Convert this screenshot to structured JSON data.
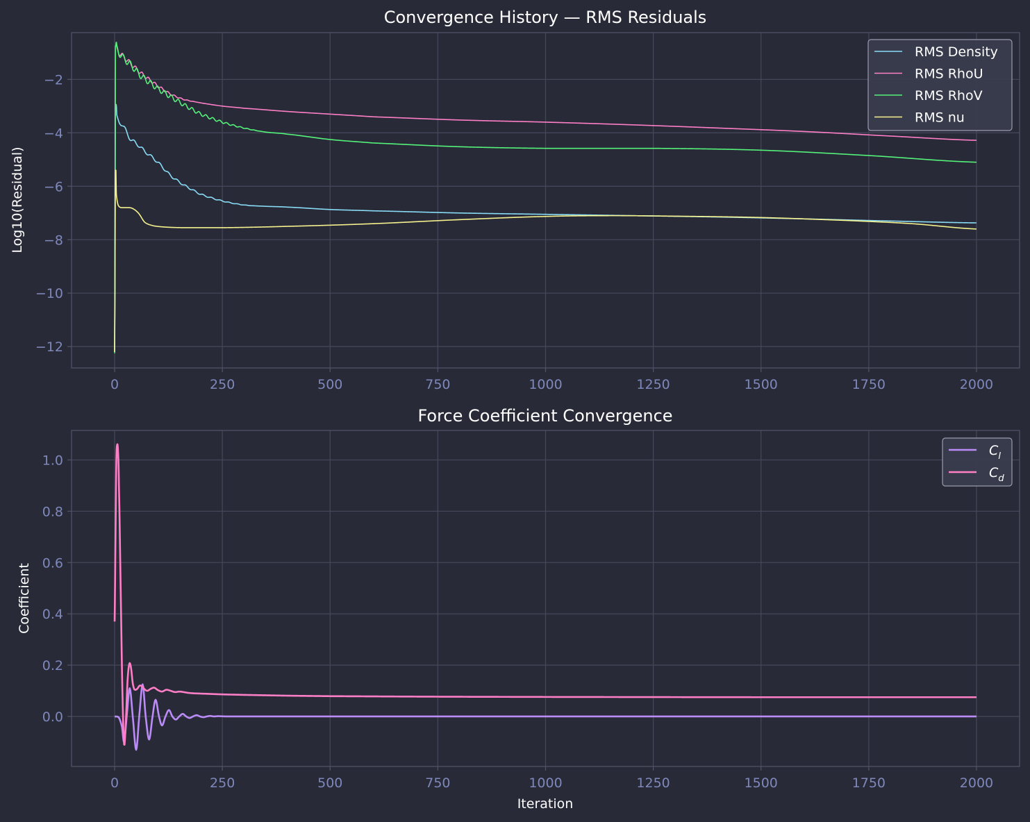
{
  "theme": {
    "background": "#282a37",
    "grid": "#444659",
    "spine": "#4f5266",
    "tick_label": "#7f88bb",
    "text": "#ffffff",
    "legend_bg": "#3a3d4e",
    "legend_edge": "#9a9dae"
  },
  "chart_data": [
    {
      "type": "line",
      "title": "Convergence History — RMS Residuals",
      "xlabel": "",
      "ylabel": "Log10(Residual)",
      "xlim": [
        -100,
        2100
      ],
      "ylim": [
        -12.8,
        -0.25
      ],
      "xticks": [
        0,
        250,
        500,
        750,
        1000,
        1250,
        1500,
        1750,
        2000
      ],
      "xtick_labels": [
        "0",
        "250",
        "500",
        "750",
        "1000",
        "1250",
        "1500",
        "1750",
        "2000"
      ],
      "yticks": [
        -2,
        -4,
        -6,
        -8,
        -10,
        -12
      ],
      "ytick_labels": [
        "−2",
        "−4",
        "−6",
        "−8",
        "−10",
        "−12"
      ],
      "grid": true,
      "legend_position": "top-right",
      "series": [
        {
          "name": "RMS Density",
          "color": "#89dcf6",
          "x": [
            0,
            2,
            5,
            10,
            20,
            35,
            50,
            70,
            100,
            130,
            160,
            200,
            250,
            300,
            350,
            400,
            500,
            600,
            800,
            1000,
            1200,
            1400,
            1600,
            1800,
            2000
          ],
          "y": [
            -12.2,
            -3.0,
            -3.4,
            -3.6,
            -3.75,
            -4.2,
            -4.4,
            -4.7,
            -5.1,
            -5.6,
            -5.95,
            -6.3,
            -6.55,
            -6.7,
            -6.75,
            -6.78,
            -6.87,
            -6.92,
            -7.0,
            -7.05,
            -7.1,
            -7.15,
            -7.22,
            -7.3,
            -7.37
          ],
          "wiggle": {
            "amp": 0.07,
            "period": 20,
            "end": 330
          }
        },
        {
          "name": "RMS RhoU",
          "color": "#ff7fc7",
          "x": [
            0,
            2,
            5,
            10,
            20,
            40,
            60,
            80,
            100,
            130,
            160,
            200,
            250,
            300,
            400,
            500,
            600,
            800,
            1000,
            1200,
            1400,
            1600,
            1800,
            2000
          ],
          "y": [
            -12.2,
            -0.75,
            -0.85,
            -1.0,
            -1.15,
            -1.45,
            -1.75,
            -2.0,
            -2.25,
            -2.55,
            -2.75,
            -2.88,
            -3.0,
            -3.08,
            -3.2,
            -3.3,
            -3.4,
            -3.52,
            -3.6,
            -3.7,
            -3.82,
            -3.95,
            -4.12,
            -4.28
          ],
          "wiggle": {
            "amp": 0.1,
            "period": 15,
            "end": 190
          }
        },
        {
          "name": "RMS RhoV",
          "color": "#54f37a",
          "x": [
            0,
            2,
            5,
            10,
            20,
            40,
            60,
            80,
            100,
            130,
            160,
            200,
            250,
            300,
            350,
            400,
            500,
            600,
            800,
            1000,
            1250,
            1500,
            1750,
            2000
          ],
          "y": [
            -12.25,
            -0.75,
            -0.85,
            -1.0,
            -1.2,
            -1.5,
            -1.85,
            -2.1,
            -2.35,
            -2.65,
            -2.95,
            -3.3,
            -3.6,
            -3.82,
            -3.97,
            -4.05,
            -4.25,
            -4.38,
            -4.52,
            -4.58,
            -4.58,
            -4.65,
            -4.85,
            -5.1
          ],
          "wiggle": {
            "amp": 0.14,
            "period": 16,
            "end": 340
          }
        },
        {
          "name": "RMS nu",
          "color": "#f6f28e",
          "x": [
            0,
            2,
            4,
            8,
            15,
            25,
            40,
            55,
            70,
            90,
            120,
            160,
            250,
            400,
            600,
            800,
            1000,
            1150,
            1300,
            1500,
            1700,
            1850,
            2000
          ],
          "y": [
            -12.2,
            -5.4,
            -6.3,
            -6.7,
            -6.8,
            -6.8,
            -6.82,
            -7.0,
            -7.35,
            -7.48,
            -7.53,
            -7.55,
            -7.55,
            -7.5,
            -7.4,
            -7.25,
            -7.13,
            -7.1,
            -7.12,
            -7.17,
            -7.28,
            -7.4,
            -7.6
          ]
        }
      ]
    },
    {
      "type": "line",
      "title": "Force Coefficient Convergence",
      "xlabel": "Iteration",
      "ylabel": "Coefficient",
      "xlim": [
        -100,
        2100
      ],
      "ylim": [
        -0.195,
        1.115
      ],
      "xticks": [
        0,
        250,
        500,
        750,
        1000,
        1250,
        1500,
        1750,
        2000
      ],
      "xtick_labels": [
        "0",
        "250",
        "500",
        "750",
        "1000",
        "1250",
        "1500",
        "1750",
        "2000"
      ],
      "yticks": [
        0.0,
        0.2,
        0.4,
        0.6,
        0.8,
        1.0
      ],
      "ytick_labels": [
        "0.0",
        "0.2",
        "0.4",
        "0.6",
        "0.8",
        "1.0"
      ],
      "grid": true,
      "legend_position": "top-right",
      "series": [
        {
          "name": "C_l",
          "color": "#bb8cf7",
          "x": [
            0,
            10,
            17,
            22,
            28,
            35,
            42,
            50,
            57,
            65,
            72,
            80,
            88,
            95,
            103,
            110,
            118,
            126,
            134,
            142,
            150,
            158,
            166,
            174,
            182,
            190,
            198,
            206,
            214,
            222,
            230,
            240,
            260,
            300,
            2000
          ],
          "y": [
            0.0,
            -0.005,
            -0.04,
            -0.1,
            0.0,
            0.11,
            0.0,
            -0.13,
            0.0,
            0.125,
            0.0,
            -0.09,
            0.0,
            0.065,
            0.0,
            -0.035,
            0.0,
            0.025,
            0.0,
            -0.012,
            0.0,
            0.01,
            0.0,
            -0.006,
            0.0,
            0.005,
            0.0,
            -0.003,
            0.0,
            0.002,
            0.0,
            0.001,
            0.0,
            0.0,
            0.0
          ]
        },
        {
          "name": "C_d",
          "color": "#ff7fc7",
          "x": [
            0,
            2,
            4,
            6,
            8,
            10,
            14,
            18,
            22,
            26,
            30,
            34,
            38,
            42,
            46,
            52,
            58,
            64,
            70,
            76,
            84,
            92,
            100,
            110,
            120,
            130,
            140,
            150,
            160,
            170,
            185,
            200,
            250,
            300,
            400,
            500,
            750,
            1000,
            1500,
            2000
          ],
          "y": [
            0.37,
            0.7,
            1.0,
            1.06,
            1.03,
            0.9,
            0.5,
            0.1,
            -0.11,
            -0.02,
            0.14,
            0.205,
            0.19,
            0.13,
            0.105,
            0.107,
            0.12,
            0.117,
            0.105,
            0.1,
            0.108,
            0.112,
            0.103,
            0.097,
            0.104,
            0.1,
            0.095,
            0.097,
            0.095,
            0.092,
            0.09,
            0.089,
            0.086,
            0.084,
            0.081,
            0.079,
            0.077,
            0.076,
            0.075,
            0.075
          ]
        }
      ]
    }
  ]
}
